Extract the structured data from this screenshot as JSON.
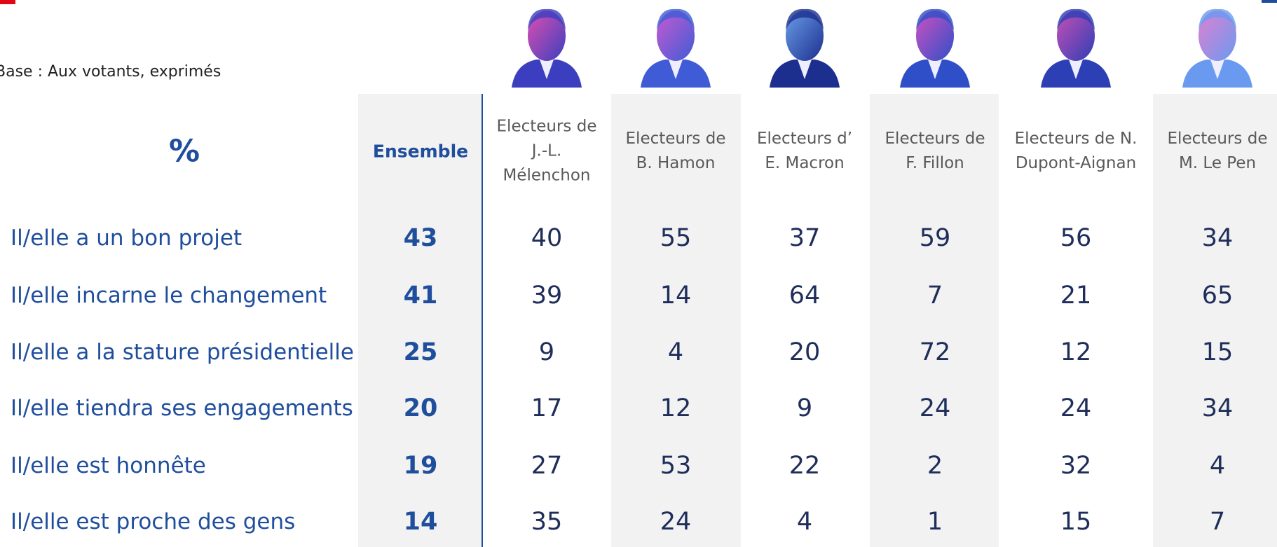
{
  "base": "Base :  Aux votants, exprimés",
  "percent_header": "%",
  "columns": [
    {
      "lines": [
        "Ensemble"
      ]
    },
    {
      "lines": [
        "Electeurs de",
        "J.-L.",
        "Mélenchon"
      ]
    },
    {
      "lines": [
        "Electeurs de",
        "B. Hamon"
      ]
    },
    {
      "lines": [
        "Electeurs d’",
        "E. Macron"
      ]
    },
    {
      "lines": [
        "Electeurs de",
        "F. Fillon"
      ]
    },
    {
      "lines": [
        "Electeurs de N.",
        "Dupont-Aignan"
      ]
    },
    {
      "lines": [
        "Electeurs de",
        "M. Le Pen"
      ]
    }
  ],
  "rows": [
    {
      "label": "Il/elle a un bon projet",
      "values": [
        43,
        40,
        55,
        37,
        59,
        56,
        34
      ]
    },
    {
      "label": "Il/elle incarne le changement",
      "values": [
        41,
        39,
        14,
        64,
        7,
        21,
        65
      ]
    },
    {
      "label": "Il/elle a la stature présidentielle",
      "values": [
        25,
        9,
        4,
        20,
        72,
        12,
        15
      ]
    },
    {
      "label": "Il/elle tiendra ses engagements",
      "values": [
        20,
        17,
        12,
        9,
        24,
        24,
        34
      ]
    },
    {
      "label": "Il/elle est honnête",
      "values": [
        19,
        27,
        53,
        22,
        2,
        32,
        4
      ]
    },
    {
      "label": "Il/elle est proche des gens",
      "values": [
        14,
        35,
        24,
        4,
        1,
        15,
        7
      ]
    }
  ]
}
